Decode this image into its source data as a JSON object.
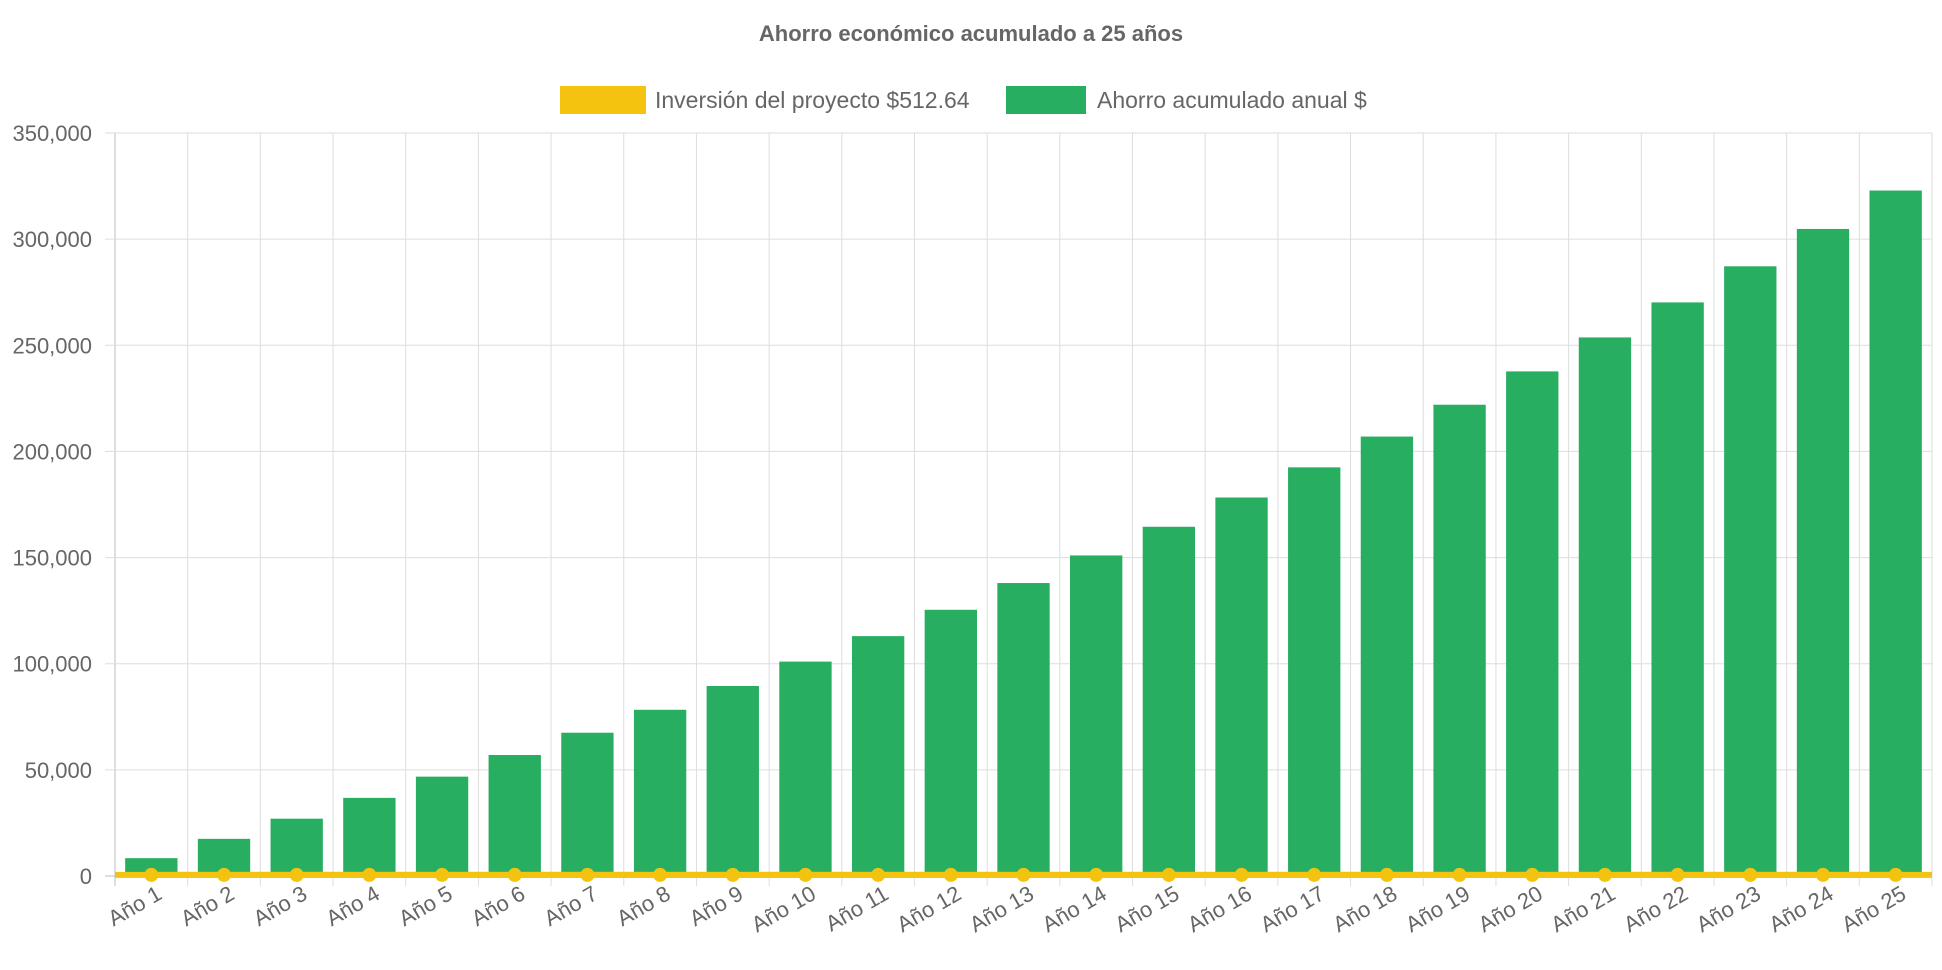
{
  "chart_data": {
    "type": "bar",
    "title": "Ahorro económico acumulado a 25 años",
    "xlabel": "",
    "ylabel": "",
    "ylim": [
      0,
      350000
    ],
    "yticks": [
      0,
      50000,
      100000,
      150000,
      200000,
      250000,
      300000,
      350000
    ],
    "ytick_labels": [
      "0",
      "50,000",
      "100,000",
      "150,000",
      "200,000",
      "250,000",
      "300,000",
      "350,000"
    ],
    "grid": true,
    "legend_position": "top-center",
    "categories": [
      "Año 1",
      "Año 2",
      "Año 3",
      "Año 4",
      "Año 5",
      "Año 6",
      "Año 7",
      "Año 8",
      "Año 9",
      "Año 10",
      "Año 11",
      "Año 12",
      "Año 13",
      "Año 14",
      "Año 15",
      "Año 16",
      "Año 17",
      "Año 18",
      "Año 19",
      "Año 20",
      "Año 21",
      "Año 22",
      "Año 23",
      "Año 24",
      "Año 25"
    ],
    "series": [
      {
        "name": "Inversión del proyecto $512.64",
        "type": "line",
        "color": "#f4c30f",
        "values": [
          512.64,
          512.64,
          512.64,
          512.64,
          512.64,
          512.64,
          512.64,
          512.64,
          512.64,
          512.64,
          512.64,
          512.64,
          512.64,
          512.64,
          512.64,
          512.64,
          512.64,
          512.64,
          512.64,
          512.64,
          512.64,
          512.64,
          512.64,
          512.64,
          512.64
        ]
      },
      {
        "name": "Ahorro acumulado anual $",
        "type": "bar",
        "color": "#27ae60",
        "values": [
          8400,
          17500,
          27000,
          36800,
          46800,
          57000,
          67500,
          78300,
          89500,
          101000,
          113000,
          125400,
          138000,
          151000,
          164500,
          178300,
          192500,
          207000,
          222000,
          237700,
          253700,
          270200,
          287200,
          304800,
          322900
        ]
      }
    ]
  }
}
